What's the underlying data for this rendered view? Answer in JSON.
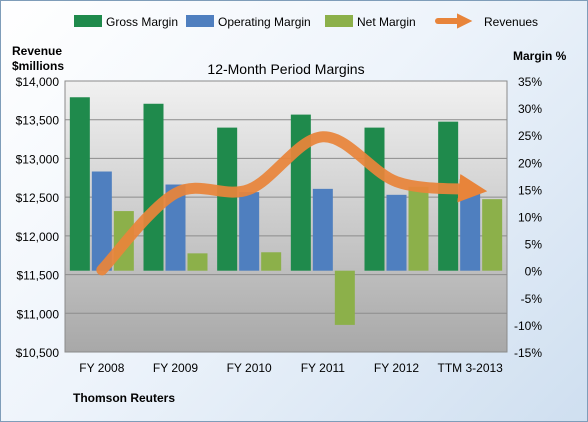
{
  "chart_data": {
    "type": "bar",
    "title": "12-Month Period Margins",
    "source": "Thomson Reuters",
    "categories": [
      "FY 2008",
      "FY 2009",
      "FY 2010",
      "FY 2011",
      "FY 2012",
      "TTM 3-2013"
    ],
    "left_axis": {
      "label_line1": "Revenue",
      "label_line2": "$millions",
      "min": 10500,
      "max": 14000,
      "ticks": [
        10500,
        11000,
        11500,
        12000,
        12500,
        13000,
        13500,
        14000
      ],
      "tick_labels": [
        "$10,500",
        "$11,000",
        "$11,500",
        "$12,000",
        "$12,500",
        "$13,000",
        "$13,500",
        "$14,000"
      ]
    },
    "right_axis": {
      "label": "Margin %",
      "min": -15,
      "max": 35,
      "ticks": [
        -15,
        -10,
        -5,
        0,
        5,
        10,
        15,
        20,
        25,
        30,
        35
      ],
      "tick_labels": [
        "-15%",
        "-10%",
        "-5%",
        "0%",
        "5%",
        "10%",
        "15%",
        "20%",
        "25%",
        "30%",
        "35%"
      ]
    },
    "legend_position": "top",
    "grid": true,
    "series": [
      {
        "name": "Gross Margin",
        "type": "bar",
        "axis": "right",
        "color": "#1f8a4c",
        "values": [
          32.0,
          30.8,
          26.4,
          28.8,
          26.4,
          27.5
        ]
      },
      {
        "name": "Operating Margin",
        "type": "bar",
        "axis": "right",
        "color": "#4f7fbf",
        "values": [
          18.3,
          15.9,
          14.5,
          15.1,
          14.0,
          14.8
        ]
      },
      {
        "name": "Net Margin",
        "type": "bar",
        "axis": "right",
        "color": "#8cb04a",
        "values": [
          11.0,
          3.2,
          3.4,
          -10.0,
          15.5,
          13.2
        ]
      },
      {
        "name": "Revenues",
        "type": "line",
        "axis": "left",
        "color": "#e8843a",
        "values": [
          11560,
          12550,
          12600,
          13280,
          12700,
          12600
        ]
      }
    ]
  }
}
